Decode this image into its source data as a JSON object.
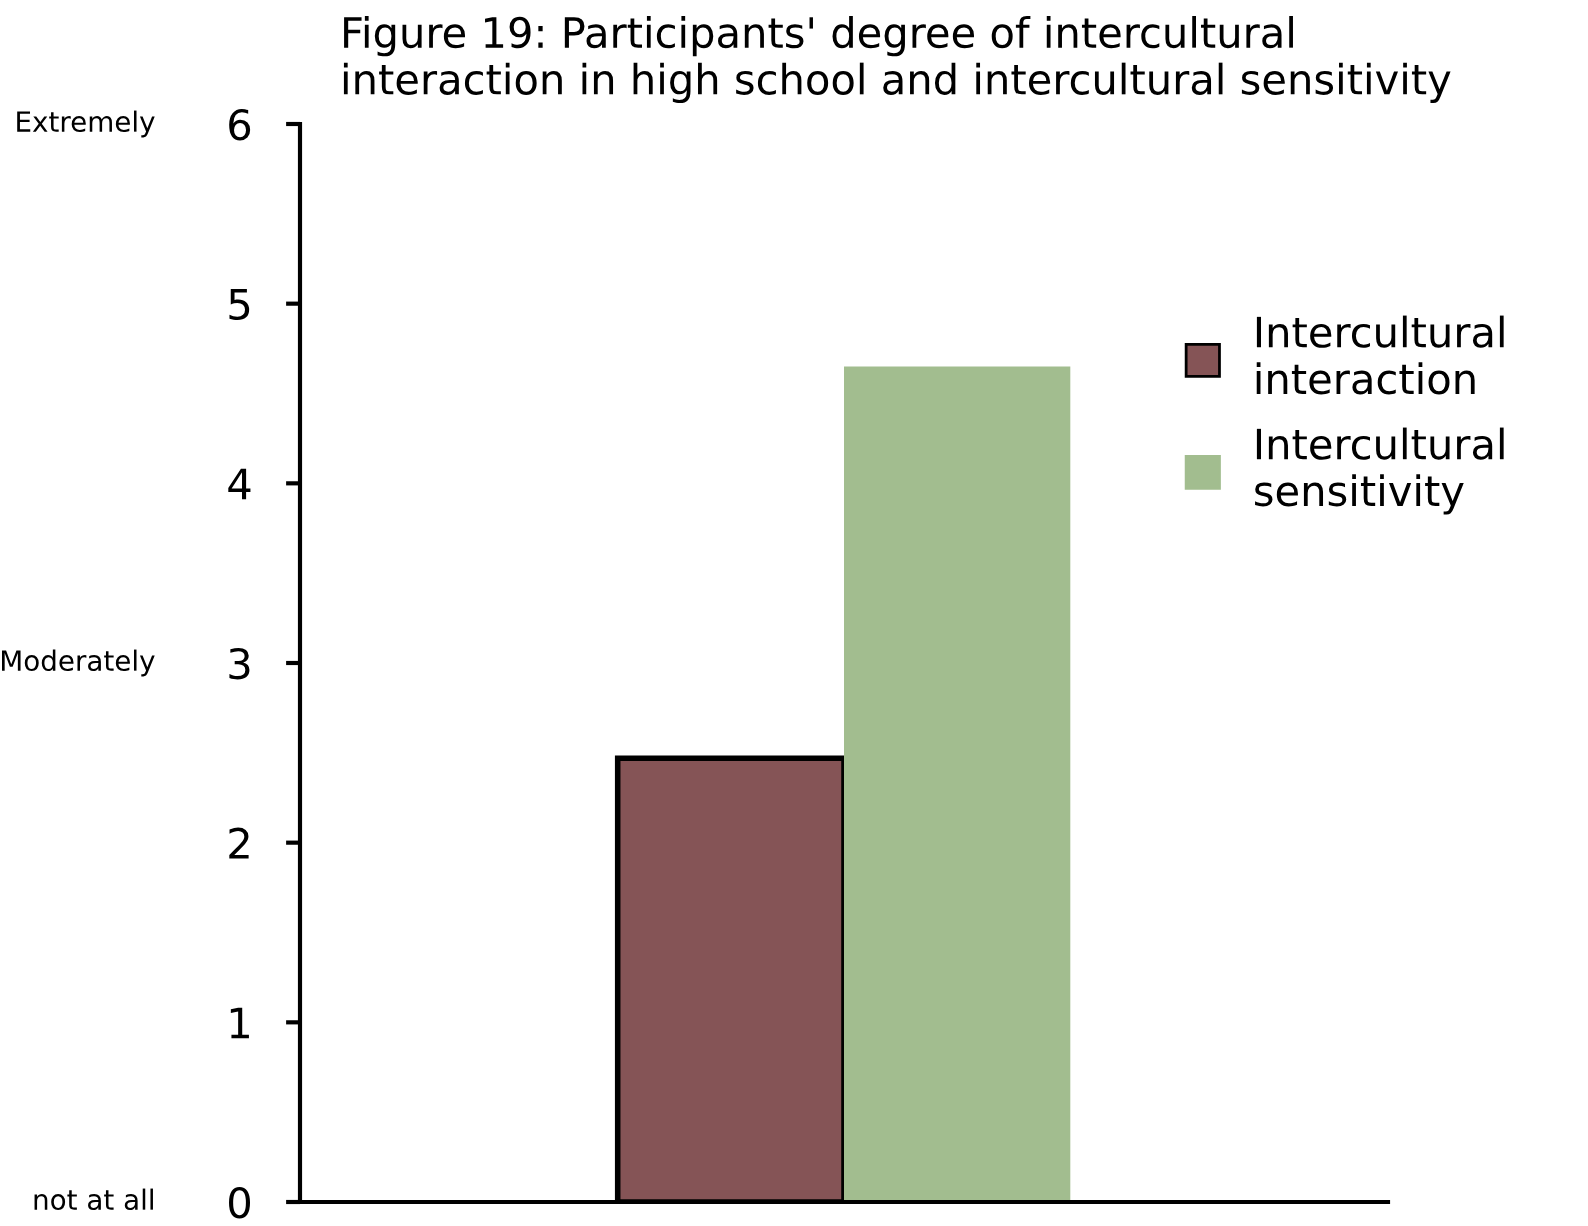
{
  "chart_data": {
    "type": "bar",
    "title": "Figure 19: Participants' degree of intercultural\ninteraction in high school and intercultural sensitivity",
    "categories": [
      null
    ],
    "series": [
      {
        "name": "Intercultural\ninteraction",
        "color": "#855456",
        "values": [
          2.47
        ]
      },
      {
        "name": "Intercultural\nsensitivity",
        "color": "#a2bd8f",
        "values": [
          4.65
        ]
      }
    ],
    "ylim": [
      0,
      6
    ],
    "yticks": [
      0,
      1,
      2,
      3,
      4,
      5,
      6
    ],
    "grid": false,
    "legend": "right",
    "annotations": [
      "Extremely",
      "Moderately",
      "not at all"
    ]
  }
}
